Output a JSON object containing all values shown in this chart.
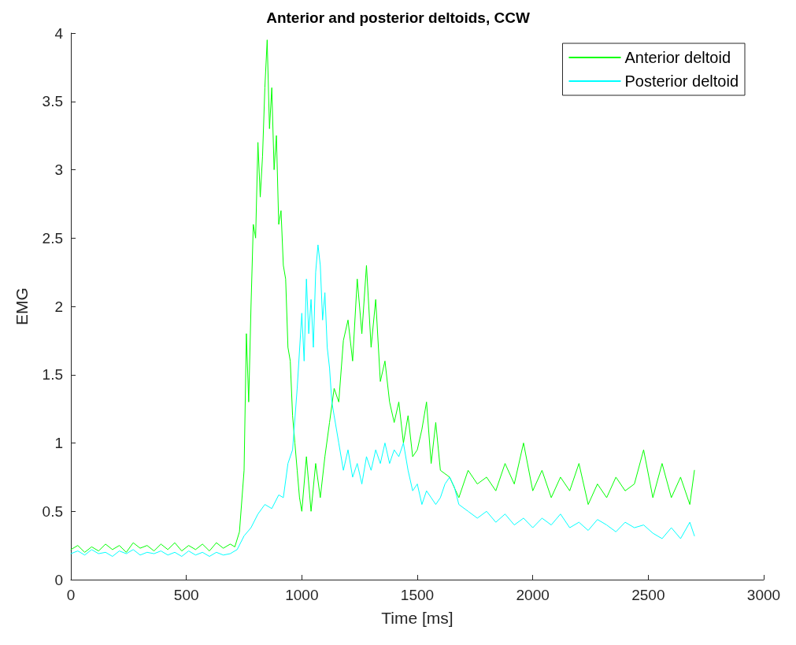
{
  "chart_data": {
    "type": "line",
    "title": "Anterior and posterior deltoids, CCW",
    "xlabel": "Time [ms]",
    "ylabel": "EMG",
    "xlim": [
      0,
      3000
    ],
    "xticks": [
      0,
      500,
      1000,
      1500,
      2000,
      2500,
      3000
    ],
    "ylim": [
      0,
      4
    ],
    "yticks": [
      0,
      0.5,
      1,
      1.5,
      2,
      2.5,
      3,
      3.5,
      4
    ],
    "grid": false,
    "legend": "top right",
    "marker": "none",
    "line_style": "solid",
    "series": [
      {
        "name": "Anterior deltoid",
        "color": "#00ff00",
        "x": [
          0,
          30,
          60,
          90,
          120,
          150,
          180,
          210,
          240,
          270,
          300,
          330,
          360,
          390,
          420,
          450,
          480,
          510,
          540,
          570,
          600,
          630,
          660,
          690,
          710,
          730,
          750,
          760,
          770,
          780,
          790,
          800,
          810,
          820,
          830,
          840,
          850,
          860,
          870,
          880,
          890,
          900,
          910,
          920,
          930,
          940,
          950,
          960,
          970,
          980,
          990,
          1000,
          1020,
          1040,
          1060,
          1080,
          1100,
          1120,
          1140,
          1160,
          1180,
          1200,
          1220,
          1240,
          1260,
          1280,
          1300,
          1320,
          1340,
          1360,
          1380,
          1400,
          1420,
          1440,
          1460,
          1480,
          1500,
          1520,
          1540,
          1560,
          1580,
          1600,
          1640,
          1680,
          1720,
          1760,
          1800,
          1840,
          1880,
          1920,
          1960,
          2000,
          2040,
          2080,
          2120,
          2160,
          2200,
          2240,
          2280,
          2320,
          2360,
          2400,
          2440,
          2480,
          2520,
          2560,
          2600,
          2640,
          2680,
          2700
        ],
        "values": [
          0.22,
          0.25,
          0.2,
          0.24,
          0.21,
          0.26,
          0.22,
          0.25,
          0.2,
          0.27,
          0.23,
          0.25,
          0.21,
          0.26,
          0.22,
          0.27,
          0.21,
          0.25,
          0.22,
          0.26,
          0.21,
          0.27,
          0.23,
          0.26,
          0.24,
          0.35,
          0.8,
          1.8,
          1.3,
          2.0,
          2.6,
          2.5,
          3.2,
          2.8,
          3.1,
          3.6,
          3.95,
          3.3,
          3.6,
          3.0,
          3.25,
          2.6,
          2.7,
          2.3,
          2.2,
          1.7,
          1.6,
          1.2,
          1.0,
          0.8,
          0.6,
          0.5,
          0.9,
          0.5,
          0.85,
          0.6,
          0.9,
          1.15,
          1.4,
          1.3,
          1.75,
          1.9,
          1.6,
          2.2,
          1.8,
          2.3,
          1.7,
          2.05,
          1.45,
          1.6,
          1.3,
          1.15,
          1.3,
          1.0,
          1.2,
          0.9,
          0.95,
          1.1,
          1.3,
          0.85,
          1.15,
          0.8,
          0.75,
          0.6,
          0.8,
          0.7,
          0.75,
          0.65,
          0.85,
          0.7,
          1.0,
          0.65,
          0.8,
          0.6,
          0.75,
          0.65,
          0.85,
          0.55,
          0.7,
          0.6,
          0.75,
          0.65,
          0.7,
          0.95,
          0.6,
          0.85,
          0.6,
          0.75,
          0.55,
          0.8
        ]
      },
      {
        "name": "Posterior deltoid",
        "color": "#00ffff",
        "x": [
          0,
          30,
          60,
          90,
          120,
          150,
          180,
          210,
          240,
          270,
          300,
          330,
          360,
          390,
          420,
          450,
          480,
          510,
          540,
          570,
          600,
          630,
          660,
          690,
          720,
          750,
          780,
          810,
          840,
          870,
          900,
          920,
          940,
          960,
          980,
          1000,
          1010,
          1020,
          1030,
          1040,
          1050,
          1060,
          1070,
          1080,
          1090,
          1100,
          1110,
          1120,
          1130,
          1140,
          1160,
          1180,
          1200,
          1220,
          1240,
          1260,
          1280,
          1300,
          1320,
          1340,
          1360,
          1380,
          1400,
          1420,
          1440,
          1460,
          1480,
          1500,
          1520,
          1540,
          1560,
          1580,
          1600,
          1620,
          1640,
          1660,
          1680,
          1720,
          1760,
          1800,
          1840,
          1880,
          1920,
          1960,
          2000,
          2040,
          2080,
          2120,
          2160,
          2200,
          2240,
          2280,
          2320,
          2360,
          2400,
          2440,
          2480,
          2520,
          2560,
          2600,
          2640,
          2680,
          2700
        ],
        "values": [
          0.19,
          0.21,
          0.18,
          0.22,
          0.19,
          0.2,
          0.17,
          0.21,
          0.19,
          0.22,
          0.18,
          0.2,
          0.19,
          0.21,
          0.18,
          0.2,
          0.17,
          0.21,
          0.18,
          0.2,
          0.17,
          0.2,
          0.18,
          0.19,
          0.22,
          0.32,
          0.38,
          0.48,
          0.55,
          0.52,
          0.62,
          0.6,
          0.85,
          0.95,
          1.4,
          1.95,
          1.6,
          2.2,
          1.8,
          2.05,
          1.7,
          2.25,
          2.45,
          2.3,
          1.9,
          2.1,
          1.7,
          1.55,
          1.3,
          1.2,
          1.0,
          0.8,
          0.95,
          0.75,
          0.85,
          0.7,
          0.9,
          0.8,
          0.95,
          0.85,
          1.0,
          0.85,
          0.95,
          0.9,
          1.0,
          0.8,
          0.65,
          0.7,
          0.55,
          0.65,
          0.6,
          0.55,
          0.6,
          0.7,
          0.75,
          0.68,
          0.55,
          0.5,
          0.45,
          0.5,
          0.42,
          0.48,
          0.4,
          0.45,
          0.38,
          0.45,
          0.4,
          0.48,
          0.38,
          0.42,
          0.36,
          0.44,
          0.4,
          0.35,
          0.42,
          0.38,
          0.4,
          0.34,
          0.3,
          0.38,
          0.3,
          0.42,
          0.32
        ]
      }
    ]
  }
}
